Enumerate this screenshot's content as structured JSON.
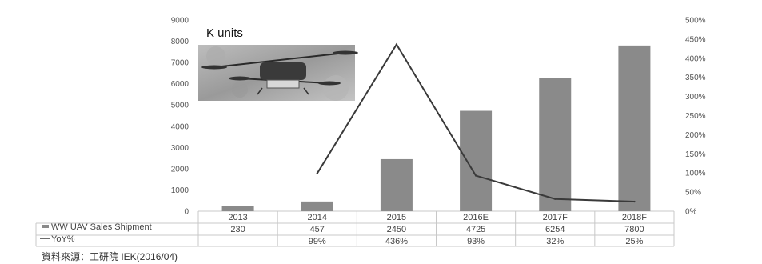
{
  "chart_data": {
    "type": "bar",
    "title": "K units",
    "categories": [
      "2013",
      "2014",
      "2015",
      "2016E",
      "2017F",
      "2018F"
    ],
    "series": [
      {
        "name": "WW UAV Sales Shipment",
        "type": "bar",
        "axis": "left",
        "values": [
          230,
          457,
          2450,
          4725,
          6254,
          7800
        ],
        "labels": [
          "230",
          "457",
          "2450",
          "4725",
          "6254",
          "7800"
        ],
        "color": "#8a8a8a"
      },
      {
        "name": "YoY%",
        "type": "line",
        "axis": "right",
        "values": [
          null,
          99,
          436,
          93,
          32,
          25
        ],
        "labels": [
          "",
          "99%",
          "436%",
          "93%",
          "32%",
          "25%"
        ],
        "color": "#3a3a3a"
      }
    ],
    "y_left": {
      "range": [
        0,
        9000
      ],
      "ticks": [
        "0",
        "1000",
        "2000",
        "3000",
        "4000",
        "5000",
        "6000",
        "7000",
        "8000",
        "9000"
      ]
    },
    "y_right": {
      "range": [
        0,
        500
      ],
      "ticks": [
        "0%",
        "50%",
        "100%",
        "150%",
        "200%",
        "250%",
        "300%",
        "350%",
        "400%",
        "450%",
        "500%"
      ]
    },
    "grid": false,
    "legend": "data-table-below",
    "source": "資料來源：工研院 IEK(2016/04)"
  },
  "colors": {
    "bar": "#8a8a8a",
    "line": "#3a3a3a",
    "axis": "#c8c8c8"
  },
  "image": {
    "subject": "drone-photo-icon"
  }
}
